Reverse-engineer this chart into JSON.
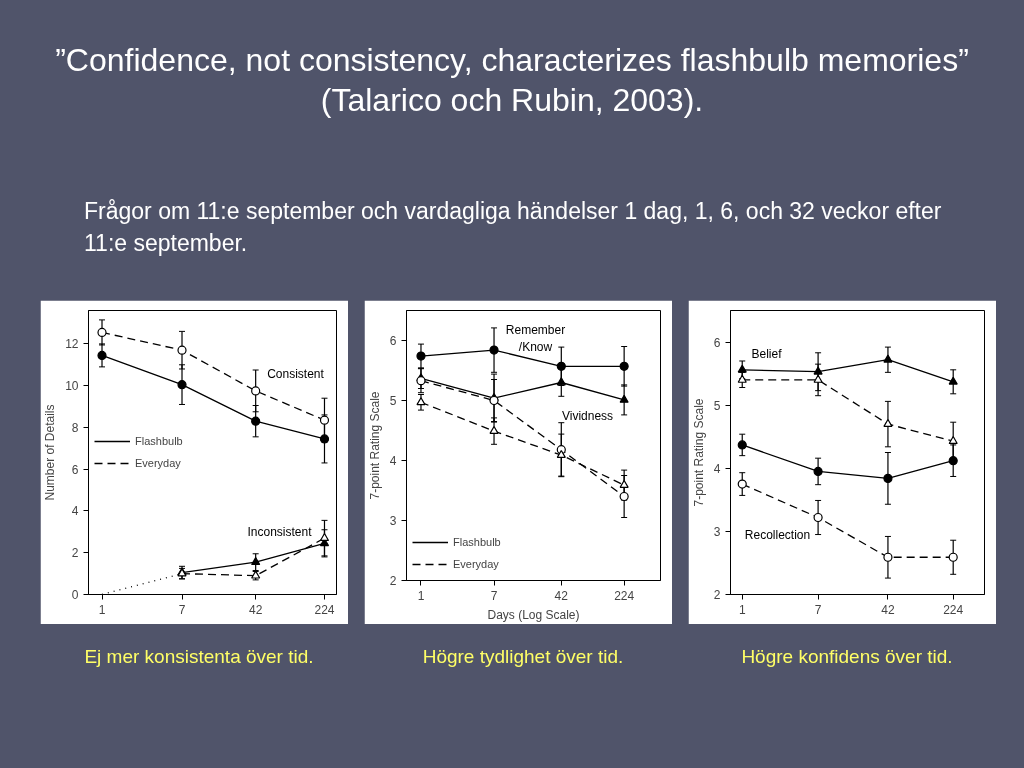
{
  "chart_data": [
    {
      "type": "line",
      "title": "”Confidence, not consistency, characterizes flashbulb memories” (Talarico och Rubin, 2003).",
      "subtitle": "Frågor om 11:e september och vardagliga händelser 1 dag, 1, 6, och 32 veckor efter 11:e september.",
      "ylabel": "Number of Details",
      "x": [
        1,
        7,
        42,
        224
      ],
      "log": "x",
      "xlim": [
        0.72,
        300
      ],
      "xticks": [
        1,
        7,
        42,
        224
      ],
      "ylim": [
        0,
        13.6
      ],
      "yticks": [
        0,
        2,
        4,
        6,
        8,
        10,
        12
      ],
      "grid": false,
      "legend": "left",
      "series": [
        {
          "name": "Flashbulb",
          "color": "#000000",
          "values": [
            11.45,
            10.05,
            8.3,
            7.45
          ],
          "errors": [
            0.55,
            0.95,
            0.75,
            1.15
          ],
          "line_style": "solid",
          "marker": "circle"
        },
        {
          "name": "Everyday",
          "color": "#000000",
          "values": [
            12.55,
            11.7,
            9.75,
            8.35
          ],
          "errors": [
            0.6,
            0.9,
            1.0,
            1.05
          ],
          "line_style": "dashed",
          "marker": "circle"
        },
        {
          "color": "#000000",
          "values": [
            null,
            1.05,
            1.55,
            2.45
          ],
          "errors": [
            null,
            0.3,
            0.4,
            0.65
          ],
          "line_style": "solid",
          "marker": "triangle"
        },
        {
          "color": "#000000",
          "values": [
            null,
            1.0,
            0.9,
            2.7
          ],
          "errors": [
            null,
            0.25,
            0.2,
            0.85
          ],
          "line_style": "dashed",
          "marker": "triangle"
        },
        {
          "type": "line",
          "color": "#000000",
          "x": [
            1,
            7
          ],
          "values": [
            0,
            1.0
          ],
          "line_style": "dotted",
          "marker": "none"
        }
      ],
      "annotations": [
        "Consistent",
        "Inconsistent",
        "Ej mer konsistenta över tid."
      ]
    },
    {
      "type": "line",
      "xlabel": "Days (Log Scale)",
      "ylabel": "7-point Rating Scale",
      "x": [
        1,
        7,
        42,
        224
      ],
      "log": "x",
      "xlim": [
        0.68,
        590
      ],
      "xticks": [
        1,
        7,
        42,
        224
      ],
      "ylim": [
        2,
        6.5
      ],
      "yticks": [
        2,
        3,
        4,
        5,
        6
      ],
      "grid": false,
      "legend": "bottom left",
      "series": [
        {
          "name": "Flashbulb",
          "color": "#000000",
          "values": [
            5.74,
            5.84,
            5.57,
            5.57
          ],
          "errors": [
            0.2,
            0.37,
            0.32,
            0.33
          ],
          "line_style": "solid",
          "marker": "circle"
        },
        {
          "color": "#000000",
          "values": [
            5.37,
            5.04,
            5.3,
            5.01
          ],
          "errors": [
            0.17,
            0.4,
            0.23,
            0.25
          ],
          "line_style": "solid",
          "marker": "triangle"
        },
        {
          "name": "Everyday",
          "color": "#000000",
          "values": [
            5.33,
            5.0,
            4.18,
            3.4
          ],
          "errors": [
            0.2,
            0.35,
            0.45,
            0.35
          ],
          "line_style": "dashed",
          "marker": "circle"
        },
        {
          "color": "#000000",
          "values": [
            4.97,
            4.49,
            4.09,
            3.59
          ],
          "errors": [
            0.13,
            0.22,
            0.35,
            0.25
          ],
          "line_style": "dashed",
          "marker": "triangle"
        }
      ],
      "annotations": [
        "Remember\n/Know",
        "Vividness",
        "Högre tydlighet över tid."
      ]
    },
    {
      "type": "line",
      "ylabel": "7-point Rating Scale",
      "x": [
        1,
        7,
        42,
        224
      ],
      "log": "x",
      "xlim": [
        0.74,
        500
      ],
      "xticks": [
        1,
        7,
        42,
        224
      ],
      "ylim": [
        2,
        6.5
      ],
      "yticks": [
        2,
        3,
        4,
        5,
        6
      ],
      "grid": false,
      "series": [
        {
          "color": "#000000",
          "values": [
            5.56,
            5.53,
            5.72,
            5.37
          ],
          "errors": [
            0.14,
            0.3,
            0.2,
            0.19
          ],
          "line_style": "solid",
          "marker": "triangle"
        },
        {
          "color": "#000000",
          "values": [
            5.4,
            5.4,
            4.7,
            4.43
          ],
          "errors": [
            0.12,
            0.25,
            0.36,
            0.3
          ],
          "line_style": "dashed",
          "marker": "triangle"
        },
        {
          "color": "#000000",
          "values": [
            4.37,
            3.95,
            3.84,
            4.12
          ],
          "errors": [
            0.17,
            0.21,
            0.41,
            0.25
          ],
          "line_style": "solid",
          "marker": "circle"
        },
        {
          "color": "#000000",
          "values": [
            3.75,
            3.22,
            2.59,
            2.59
          ],
          "errors": [
            0.18,
            0.27,
            0.33,
            0.27
          ],
          "line_style": "dashed",
          "marker": "circle"
        }
      ],
      "annotations": [
        "Belief",
        "Recollection",
        "Högre konfidens över tid."
      ]
    }
  ]
}
